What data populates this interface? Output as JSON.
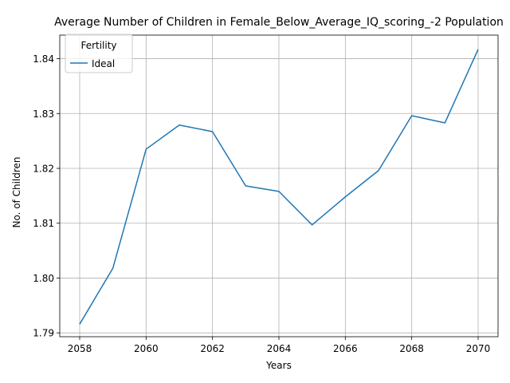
{
  "chart_data": {
    "type": "line",
    "title": "Average Number of Children in Female_Below_Average_IQ_scoring_-2 Population",
    "xlabel": "Years",
    "ylabel": "No. of Children",
    "xlim": [
      2057.4,
      2070.6
    ],
    "ylim": [
      1.7893,
      1.8443
    ],
    "xticks": [
      2058,
      2060,
      2062,
      2064,
      2066,
      2068,
      2070
    ],
    "xtick_labels": [
      "2058",
      "2060",
      "2062",
      "2064",
      "2066",
      "2068",
      "2070"
    ],
    "yticks": [
      1.79,
      1.8,
      1.81,
      1.82,
      1.83,
      1.84
    ],
    "ytick_labels": [
      "1.79",
      "1.80",
      "1.81",
      "1.82",
      "1.83",
      "1.84"
    ],
    "grid": true,
    "legend": {
      "title": "Fertility",
      "placement": "upper-left"
    },
    "series": [
      {
        "name": "Ideal",
        "color": "#1f77b4",
        "x": [
          2058,
          2059,
          2060,
          2061,
          2062,
          2063,
          2064,
          2065,
          2066,
          2067,
          2068,
          2069,
          2070
        ],
        "y": [
          1.7916,
          1.8018,
          1.8235,
          1.8279,
          1.8267,
          1.8168,
          1.8158,
          1.8097,
          1.8148,
          1.8196,
          1.8296,
          1.8283,
          1.8417
        ]
      }
    ]
  }
}
